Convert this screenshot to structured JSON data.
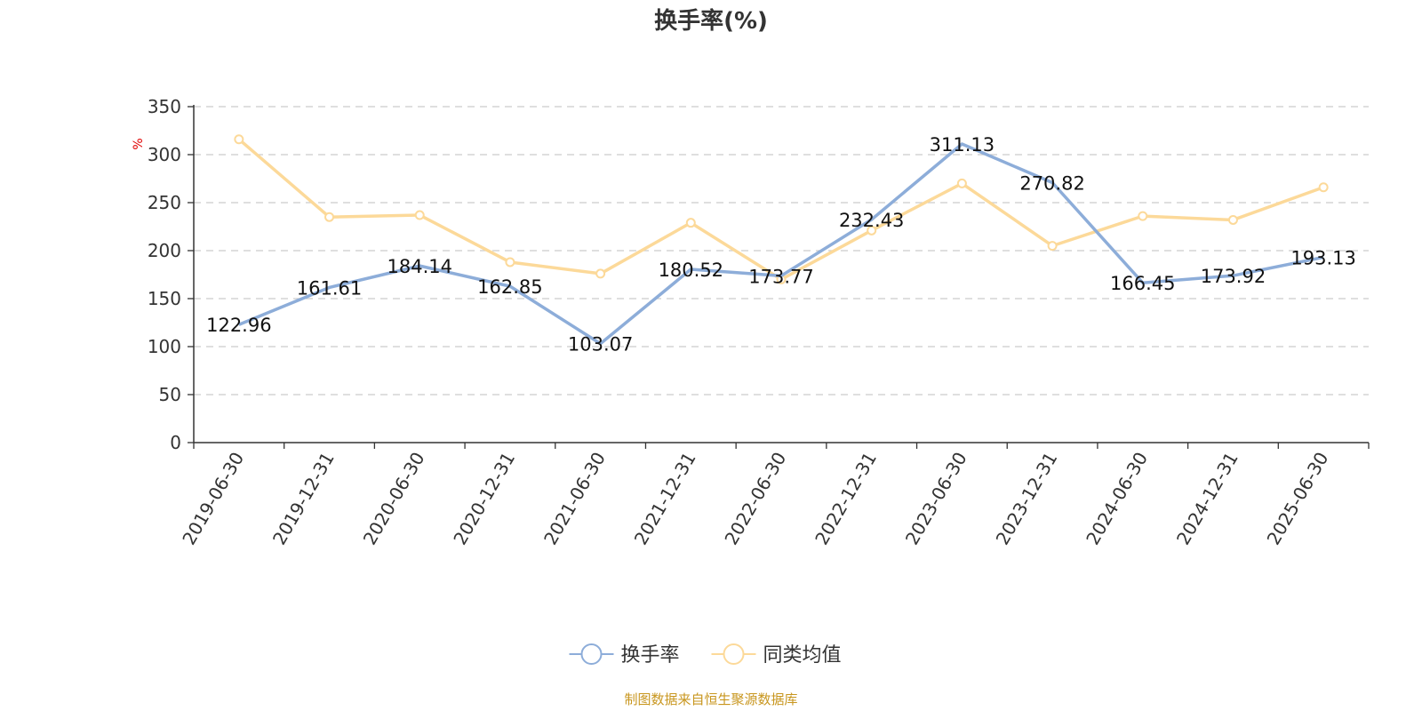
{
  "chart_data": {
    "type": "line",
    "title": "换手率(%)",
    "ylabel": "%",
    "ylim": [
      0,
      350
    ],
    "yticks": [
      0,
      50,
      100,
      150,
      200,
      250,
      300,
      350
    ],
    "grid": true,
    "legend_position": "bottom",
    "categories": [
      "2019-06-30",
      "2019-12-31",
      "2020-06-30",
      "2020-12-31",
      "2021-06-30",
      "2021-12-31",
      "2022-06-30",
      "2022-12-31",
      "2023-06-30",
      "2023-12-31",
      "2024-06-30",
      "2024-12-31",
      "2025-06-30"
    ],
    "series": [
      {
        "name": "换手率",
        "color": "#8dadd9",
        "values": [
          122.96,
          161.61,
          184.14,
          162.85,
          103.07,
          180.52,
          173.77,
          232.43,
          311.13,
          270.82,
          166.45,
          173.92,
          193.13
        ],
        "show_labels": true
      },
      {
        "name": "同类均值",
        "color": "#fcd999",
        "values": [
          316,
          235,
          237,
          188,
          176,
          229,
          170,
          221,
          270,
          205,
          236,
          232,
          266
        ],
        "show_labels": false
      }
    ]
  },
  "source_text": "制图数据来自恒生聚源数据库"
}
